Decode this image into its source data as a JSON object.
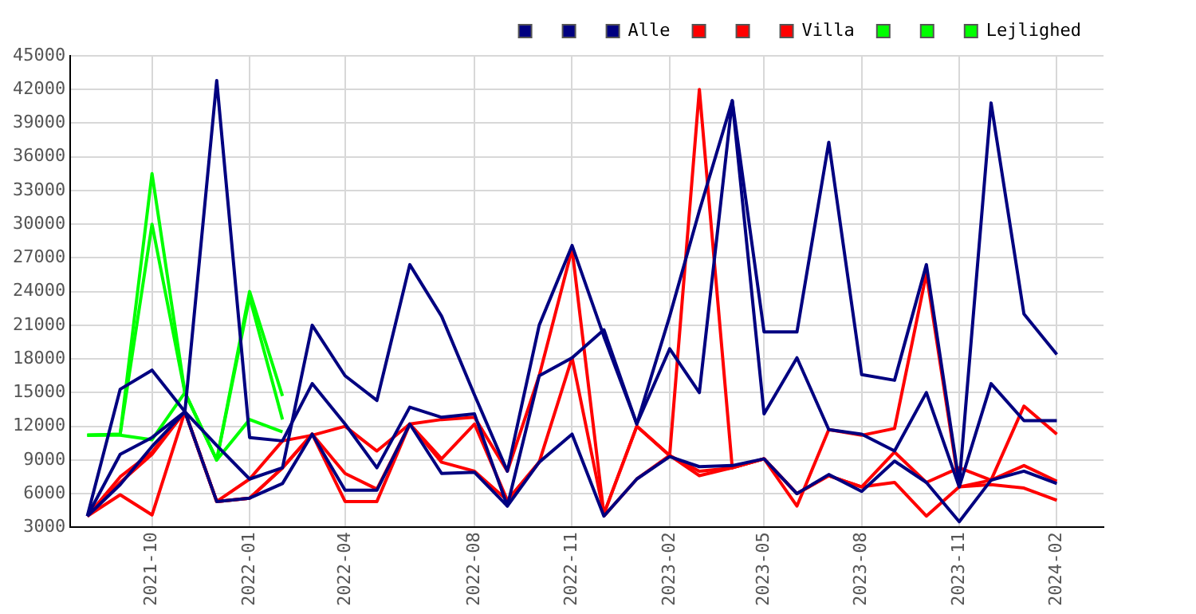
{
  "chart_data": {
    "type": "line",
    "x": [
      "2021-08",
      "2021-09",
      "2021-10",
      "2021-11",
      "2021-12",
      "2022-01",
      "2022-02",
      "2022-03",
      "2022-04",
      "2022-05",
      "2022-06",
      "2022-07",
      "2022-08",
      "2022-09",
      "2022-10",
      "2022-11",
      "2022-12",
      "2023-01",
      "2023-02",
      "2023-03",
      "2023-04",
      "2023-05",
      "2023-06",
      "2023-07",
      "2023-08",
      "2023-09",
      "2023-10",
      "2023-11",
      "2023-12",
      "2024-01",
      "2024-02"
    ],
    "series": [
      {
        "color": "#000080",
        "values": [
          4000,
          15300,
          17000,
          13300,
          10300,
          7300,
          8300,
          21000,
          16500,
          14300,
          26400,
          21800,
          14800,
          8000,
          21000,
          28100,
          20000,
          12200,
          21800,
          31200,
          41000,
          20400,
          20400,
          37300,
          16600,
          16100,
          26400,
          6900,
          40800,
          22000,
          18400
        ]
      },
      {
        "color": "#000080",
        "values": [
          4000,
          9500,
          11000,
          13300,
          42800,
          11000,
          10700,
          15800,
          12200,
          8300,
          13700,
          12800,
          13100,
          4900,
          16500,
          18100,
          20600,
          12200,
          18900,
          15000,
          41000,
          13100,
          18100,
          11700,
          11300,
          9800,
          15000,
          6600,
          15800,
          12500,
          12500
        ]
      },
      {
        "name": "Alle",
        "color": "#000080",
        "values": [
          4000,
          6800,
          10200,
          13300,
          5300,
          5600,
          6900,
          11300,
          6300,
          6300,
          12200,
          7800,
          7900,
          4900,
          8800,
          11300,
          4000,
          7300,
          9300,
          8400,
          8500,
          9100,
          6000,
          7700,
          6200,
          8900,
          7000,
          3500,
          7200,
          8000,
          6900
        ]
      },
      {
        "color": "#ff0000",
        "values": [
          4000,
          7500,
          9700,
          13300,
          5300,
          7300,
          10700,
          11200,
          12000,
          9800,
          12200,
          12600,
          12800,
          8000,
          16500,
          27800,
          4200,
          12000,
          9400,
          42000,
          8300,
          9100,
          4900,
          11700,
          11200,
          11800,
          25600,
          6600,
          7200,
          13800,
          11300
        ]
      },
      {
        "color": "#ff0000",
        "values": [
          4000,
          7000,
          9500,
          13300,
          5300,
          5600,
          8300,
          11300,
          7800,
          6400,
          12200,
          9100,
          12200,
          5400,
          8800,
          18100,
          4200,
          12000,
          9400,
          8000,
          8300,
          9100,
          6000,
          7600,
          6600,
          9700,
          7000,
          8300,
          7200,
          8500,
          7100
        ]
      },
      {
        "name": "Villa",
        "color": "#ff0000",
        "values": [
          4000,
          5900,
          4100,
          13300,
          5300,
          5600,
          8300,
          11300,
          5300,
          5300,
          12200,
          8800,
          8000,
          5400,
          8800,
          null,
          4000,
          7300,
          9400,
          7600,
          8300,
          9100,
          6000,
          7600,
          6600,
          7000,
          4000,
          6600,
          6800,
          6500,
          5400
        ]
      },
      {
        "color": "#00ff00",
        "values": [
          11200,
          11300,
          34500,
          15000,
          9000,
          24000,
          14700,
          null,
          null,
          null,
          null,
          null,
          null,
          null,
          null,
          null,
          null,
          null,
          null,
          null,
          null,
          null,
          null,
          null,
          null,
          null,
          null,
          null,
          null,
          null,
          null
        ]
      },
      {
        "color": "#00ff00",
        "values": [
          11200,
          11300,
          30000,
          15000,
          9000,
          23500,
          12600,
          null,
          null,
          null,
          null,
          null,
          null,
          null,
          null,
          null,
          null,
          null,
          null,
          null,
          null,
          null,
          null,
          null,
          null,
          null,
          null,
          null,
          null,
          null,
          null
        ]
      },
      {
        "name": "Lejlighed",
        "color": "#00ff00",
        "values": [
          11200,
          11200,
          10800,
          15000,
          9000,
          12600,
          11500,
          null,
          null,
          null,
          null,
          null,
          null,
          null,
          null,
          null,
          null,
          null,
          null,
          null,
          null,
          null,
          null,
          null,
          null,
          null,
          null,
          null,
          null,
          null,
          null
        ]
      }
    ],
    "xlim": [
      "2021-07-16",
      "2024-03-16"
    ],
    "xticks": [
      "2021-10",
      "2022-01",
      "2022-04",
      "2022-08",
      "2022-11",
      "2023-02",
      "2023-05",
      "2023-08",
      "2023-11",
      "2024-02"
    ],
    "ylim": [
      3000,
      45000
    ],
    "yticks": [
      3000,
      6000,
      9000,
      12000,
      15000,
      18000,
      21000,
      24000,
      27000,
      30000,
      33000,
      36000,
      39000,
      42000,
      45000
    ],
    "grid": true,
    "legend": "top right",
    "marker": "none",
    "line_style": "solid"
  }
}
